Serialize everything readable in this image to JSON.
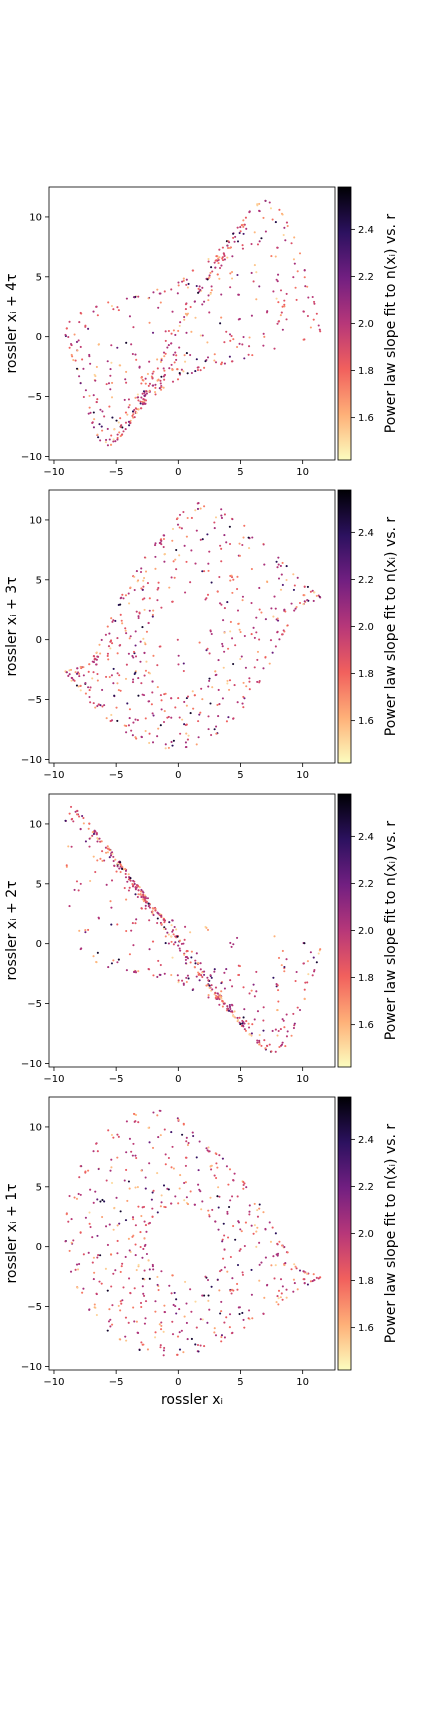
{
  "colorbar": {
    "label": "Power law slope fit to n(xᵢ) vs. r",
    "ticks": [
      "1.6",
      "1.8",
      "2.0",
      "2.2",
      "2.4"
    ],
    "range": [
      1.42,
      2.58
    ],
    "colormap": "magma_r",
    "colormap_stops": [
      "#fcfdbf",
      "#feb078",
      "#f1605d",
      "#b73779",
      "#721f81",
      "#2c115f",
      "#000004"
    ]
  },
  "chart_data": [
    {
      "type": "scatter",
      "title": "",
      "xlabel": "",
      "ylabel": "rossler xᵢ + 4τ",
      "xlim": [
        -10.4,
        12.6
      ],
      "ylim": [
        -10.3,
        12.5
      ],
      "xticks": [
        "-10",
        "-5",
        "0",
        "5",
        "10"
      ],
      "yticks": [
        "-10",
        "-5",
        "0",
        "5",
        "10"
      ],
      "lag": 4,
      "grid": false,
      "series": [
        {
          "description_of_color": "point color = power law slope",
          "points_visible": "several hundred points tracing a Rossler attractor projection"
        }
      ]
    },
    {
      "type": "scatter",
      "title": "",
      "xlabel": "",
      "ylabel": "rossler xᵢ + 3τ",
      "xlim": [
        -10.4,
        12.6
      ],
      "ylim": [
        -10.3,
        12.5
      ],
      "xticks": [
        "-10",
        "-5",
        "0",
        "5",
        "10"
      ],
      "yticks": [
        "-10",
        "-5",
        "0",
        "5",
        "10"
      ],
      "lag": 3,
      "grid": false
    },
    {
      "type": "scatter",
      "title": "",
      "xlabel": "",
      "ylabel": "rossler xᵢ + 2τ",
      "xlim": [
        -10.4,
        12.6
      ],
      "ylim": [
        -10.3,
        12.5
      ],
      "xticks": [
        "-10",
        "-5",
        "0",
        "5",
        "10"
      ],
      "yticks": [
        "-10",
        "-5",
        "0",
        "5",
        "10"
      ],
      "lag": 2,
      "grid": false
    },
    {
      "type": "scatter",
      "title": "",
      "xlabel": "rossler xᵢ",
      "ylabel": "rossler xᵢ + 1τ",
      "xlim": [
        -10.4,
        12.6
      ],
      "ylim": [
        -10.3,
        12.5
      ],
      "xticks": [
        "-10",
        "-5",
        "0",
        "5",
        "10"
      ],
      "yticks": [
        "-10",
        "-5",
        "0",
        "5",
        "10"
      ],
      "lag": 1,
      "grid": false
    }
  ]
}
